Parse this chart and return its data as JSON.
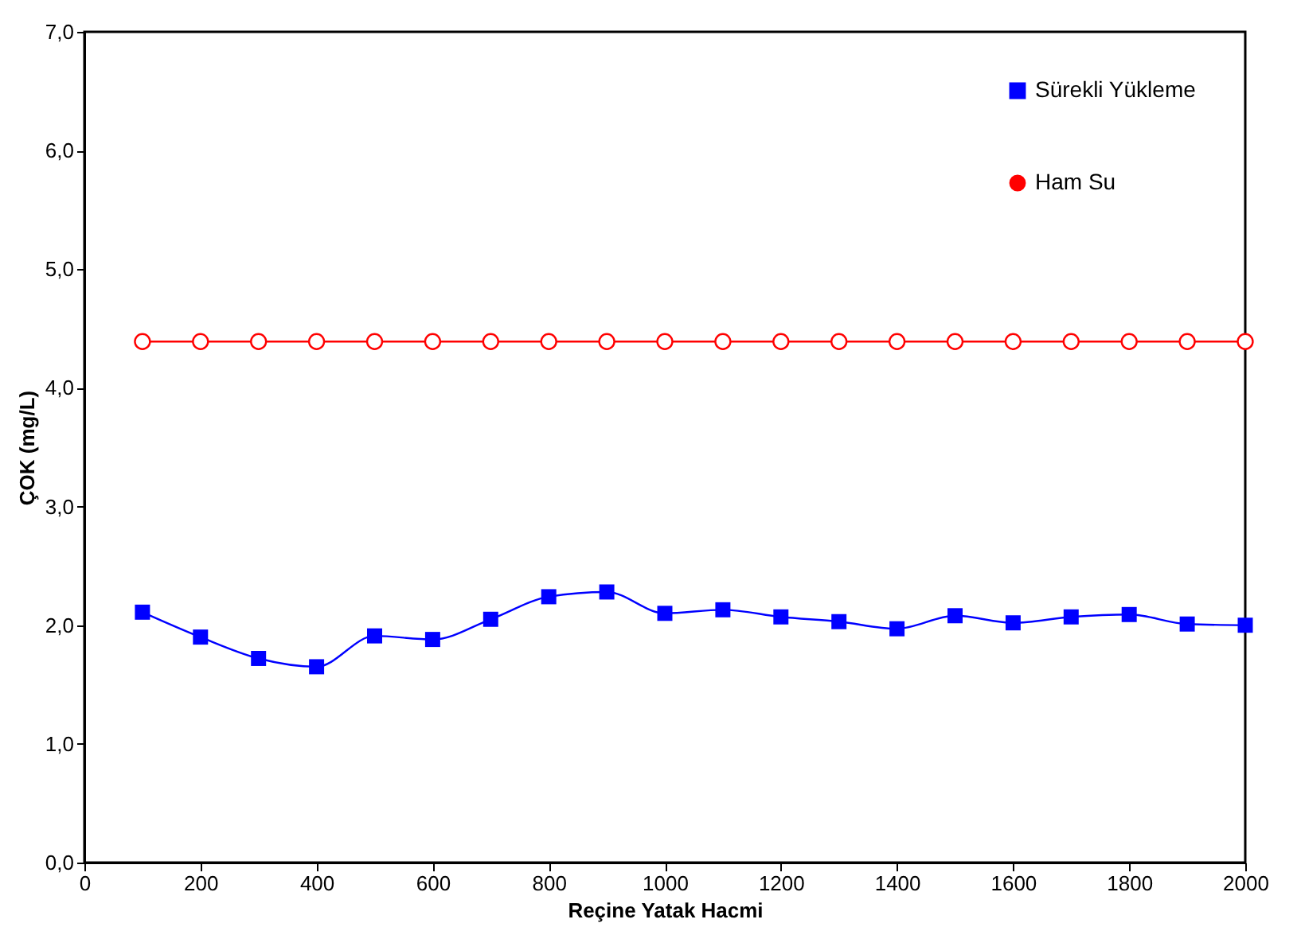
{
  "chart_data": {
    "type": "line",
    "xlabel": "Reçine Yatak Hacmi",
    "ylabel": "ÇOK (mg/L)",
    "x": [
      100,
      200,
      300,
      400,
      500,
      600,
      700,
      800,
      900,
      1000,
      1100,
      1200,
      1300,
      1400,
      1500,
      1600,
      1700,
      1800,
      1900,
      2000
    ],
    "series": [
      {
        "name": "Sürekli Yükleme",
        "color": "#0000ff",
        "marker": "square",
        "values": [
          2.11,
          1.9,
          1.72,
          1.65,
          1.91,
          1.88,
          2.05,
          2.24,
          2.28,
          2.1,
          2.13,
          2.07,
          2.03,
          1.97,
          2.08,
          2.02,
          2.07,
          2.09,
          2.01,
          2.0
        ]
      },
      {
        "name": "Ham Su",
        "color": "#ff0000",
        "marker": "circle",
        "values": [
          4.39,
          4.39,
          4.39,
          4.39,
          4.39,
          4.39,
          4.39,
          4.39,
          4.39,
          4.39,
          4.39,
          4.39,
          4.39,
          4.39,
          4.39,
          4.39,
          4.39,
          4.39,
          4.39,
          4.39
        ]
      }
    ],
    "xlim": [
      0,
      2000
    ],
    "xticks": [
      0,
      200,
      400,
      600,
      800,
      1000,
      1200,
      1400,
      1600,
      1800,
      2000
    ],
    "ylim": [
      0,
      7
    ],
    "yticks": [
      {
        "value": 0,
        "label": "0,0"
      },
      {
        "value": 1,
        "label": "1,0"
      },
      {
        "value": 2,
        "label": "2,0"
      },
      {
        "value": 3,
        "label": "3,0"
      },
      {
        "value": 4,
        "label": "4,0"
      },
      {
        "value": 5,
        "label": "5,0"
      },
      {
        "value": 6,
        "label": "6,0"
      },
      {
        "value": 7,
        "label": "7,0"
      }
    ],
    "grid": false,
    "legend": "top right",
    "line_style": "solid"
  }
}
